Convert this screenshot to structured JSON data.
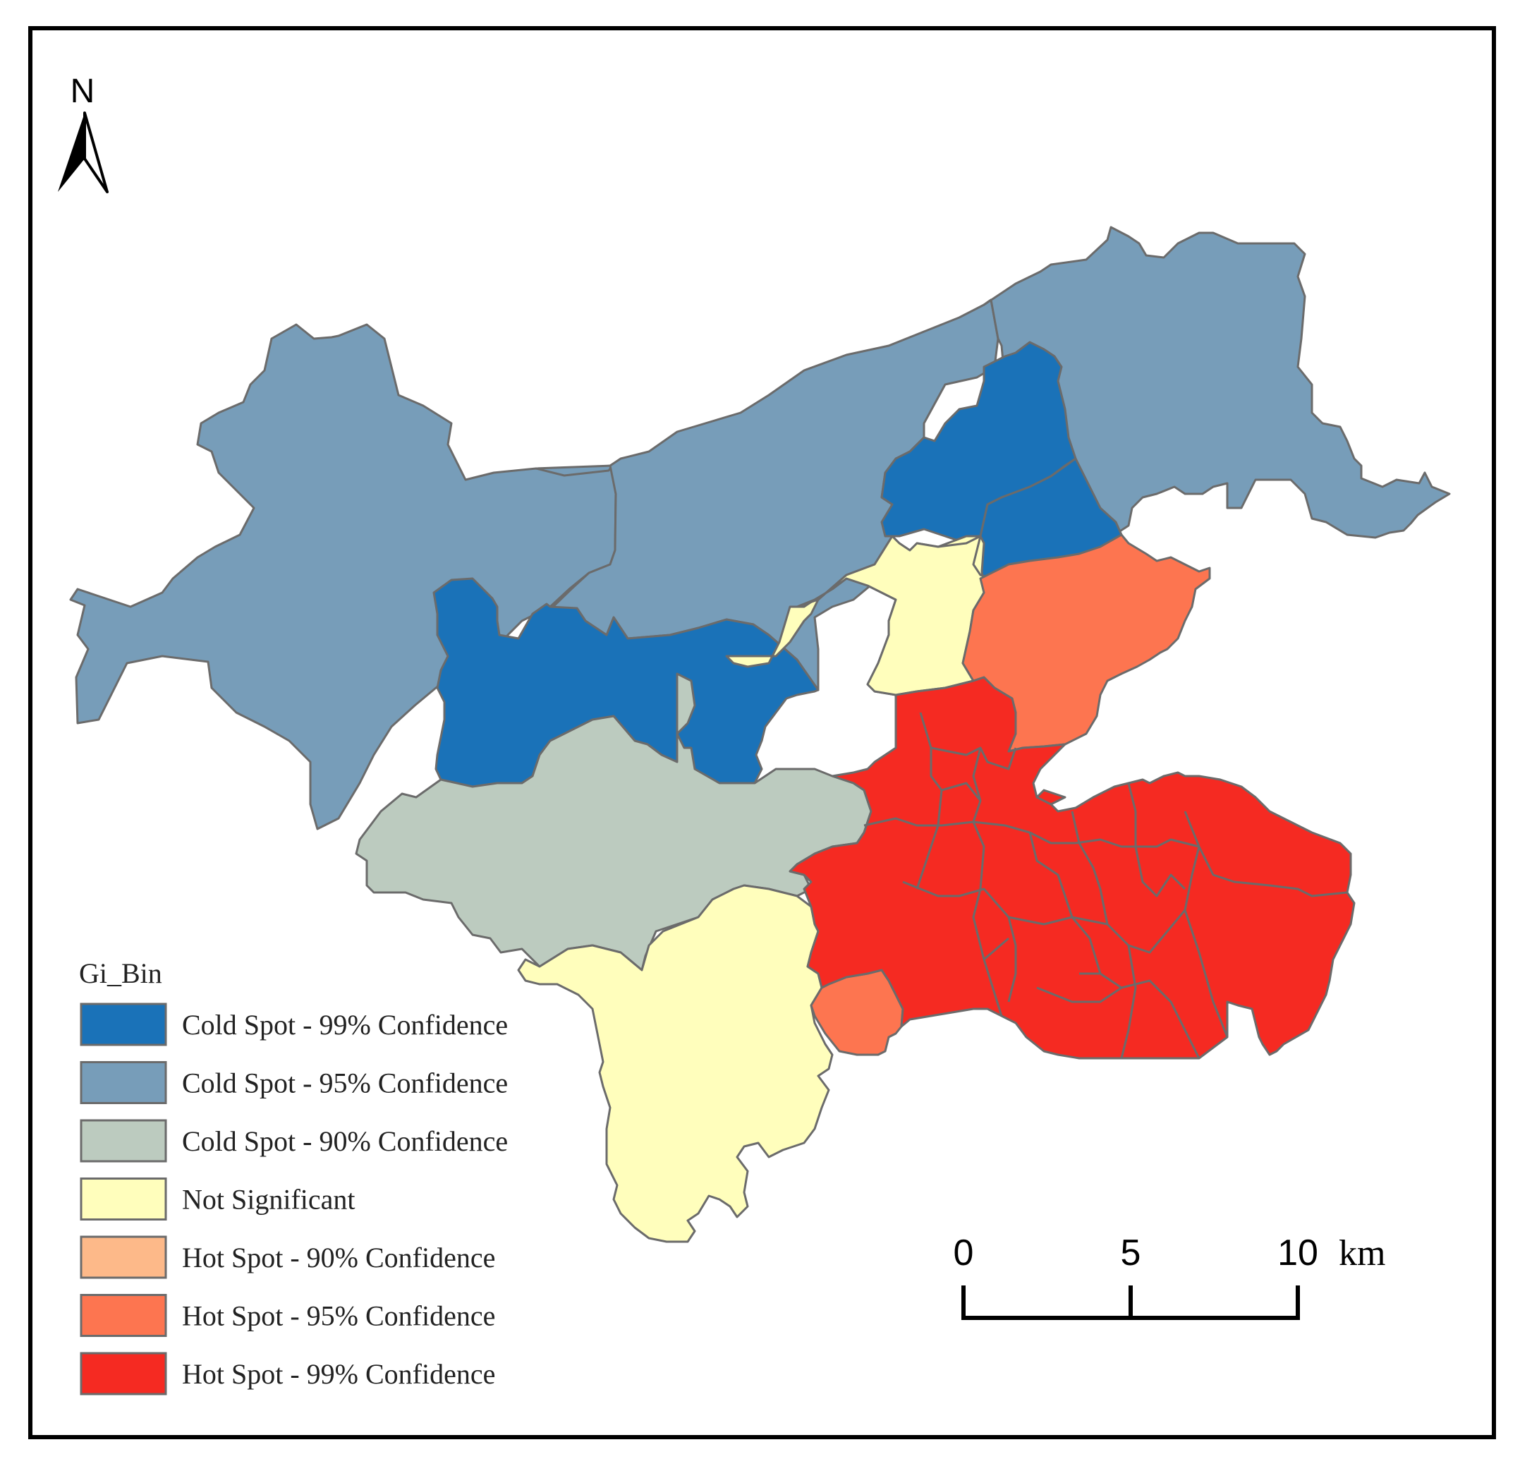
{
  "north_arrow": {
    "label": "N"
  },
  "legend": {
    "title": "Gi_Bin",
    "items": [
      {
        "label": "Cold Spot - 99% Confidence",
        "color": "#1a72b8"
      },
      {
        "label": "Cold Spot - 95% Confidence",
        "color": "#779db9"
      },
      {
        "label": "Cold Spot - 90% Confidence",
        "color": "#bccbbf"
      },
      {
        "label": "Not Significant",
        "color": "#fffebc"
      },
      {
        "label": "Hot Spot - 90% Confidence",
        "color": "#fdb989"
      },
      {
        "label": "Hot Spot - 95% Confidence",
        "color": "#fd7550"
      },
      {
        "label": "Hot Spot - 99% Confidence",
        "color": "#f52a22"
      }
    ]
  },
  "scale_bar": {
    "labels": [
      "0",
      "5",
      "10"
    ],
    "unit": "km"
  }
}
